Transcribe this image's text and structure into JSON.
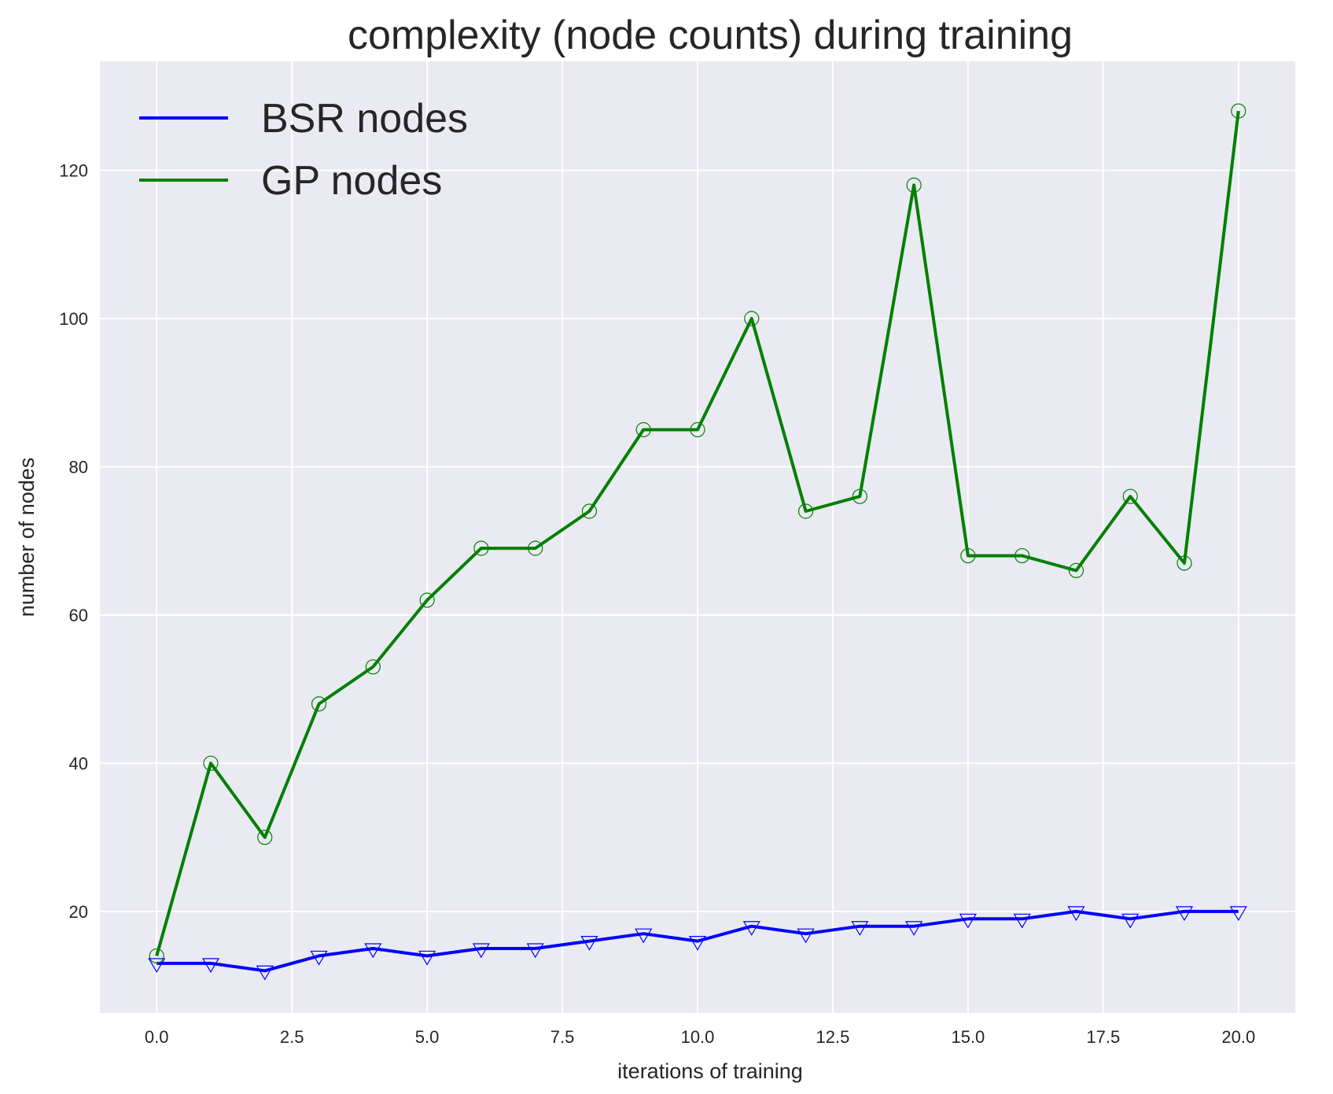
{
  "chart_data": {
    "type": "line",
    "title": "complexity (node counts) during training",
    "xlabel": "iterations of training",
    "ylabel": "number of nodes",
    "xlim": [
      -1.05,
      21.05
    ],
    "ylim": [
      6.3,
      134.7
    ],
    "xticks": [
      0,
      2.5,
      5,
      7.5,
      10,
      12.5,
      15,
      17.5,
      20
    ],
    "xtick_labels": [
      "0.0",
      "2.5",
      "5.0",
      "7.5",
      "10.0",
      "12.5",
      "15.0",
      "17.5",
      "20.0"
    ],
    "yticks": [
      20,
      40,
      60,
      80,
      100,
      120
    ],
    "ytick_labels": [
      "20",
      "40",
      "60",
      "80",
      "100",
      "120"
    ],
    "grid": true,
    "legend_position": "top-left",
    "x": [
      0,
      1,
      2,
      3,
      4,
      5,
      6,
      7,
      8,
      9,
      10,
      11,
      12,
      13,
      14,
      15,
      16,
      17,
      18,
      19,
      20
    ],
    "series": [
      {
        "name": "BSR nodes",
        "color": "#0000ff",
        "marker": "triangle-down",
        "values": [
          13,
          13,
          12,
          14,
          15,
          14,
          15,
          15,
          16,
          17,
          16,
          18,
          17,
          18,
          18,
          19,
          19,
          20,
          19,
          20,
          20
        ]
      },
      {
        "name": "GP nodes",
        "color": "#008000",
        "marker": "circle",
        "values": [
          14,
          40,
          30,
          48,
          53,
          62,
          69,
          69,
          74,
          85,
          85,
          100,
          74,
          76,
          118,
          68,
          68,
          66,
          76,
          67,
          128
        ]
      }
    ],
    "colors": {
      "plot_background": "#eaeaf2",
      "grid": "#ffffff",
      "text": "#262626"
    }
  }
}
